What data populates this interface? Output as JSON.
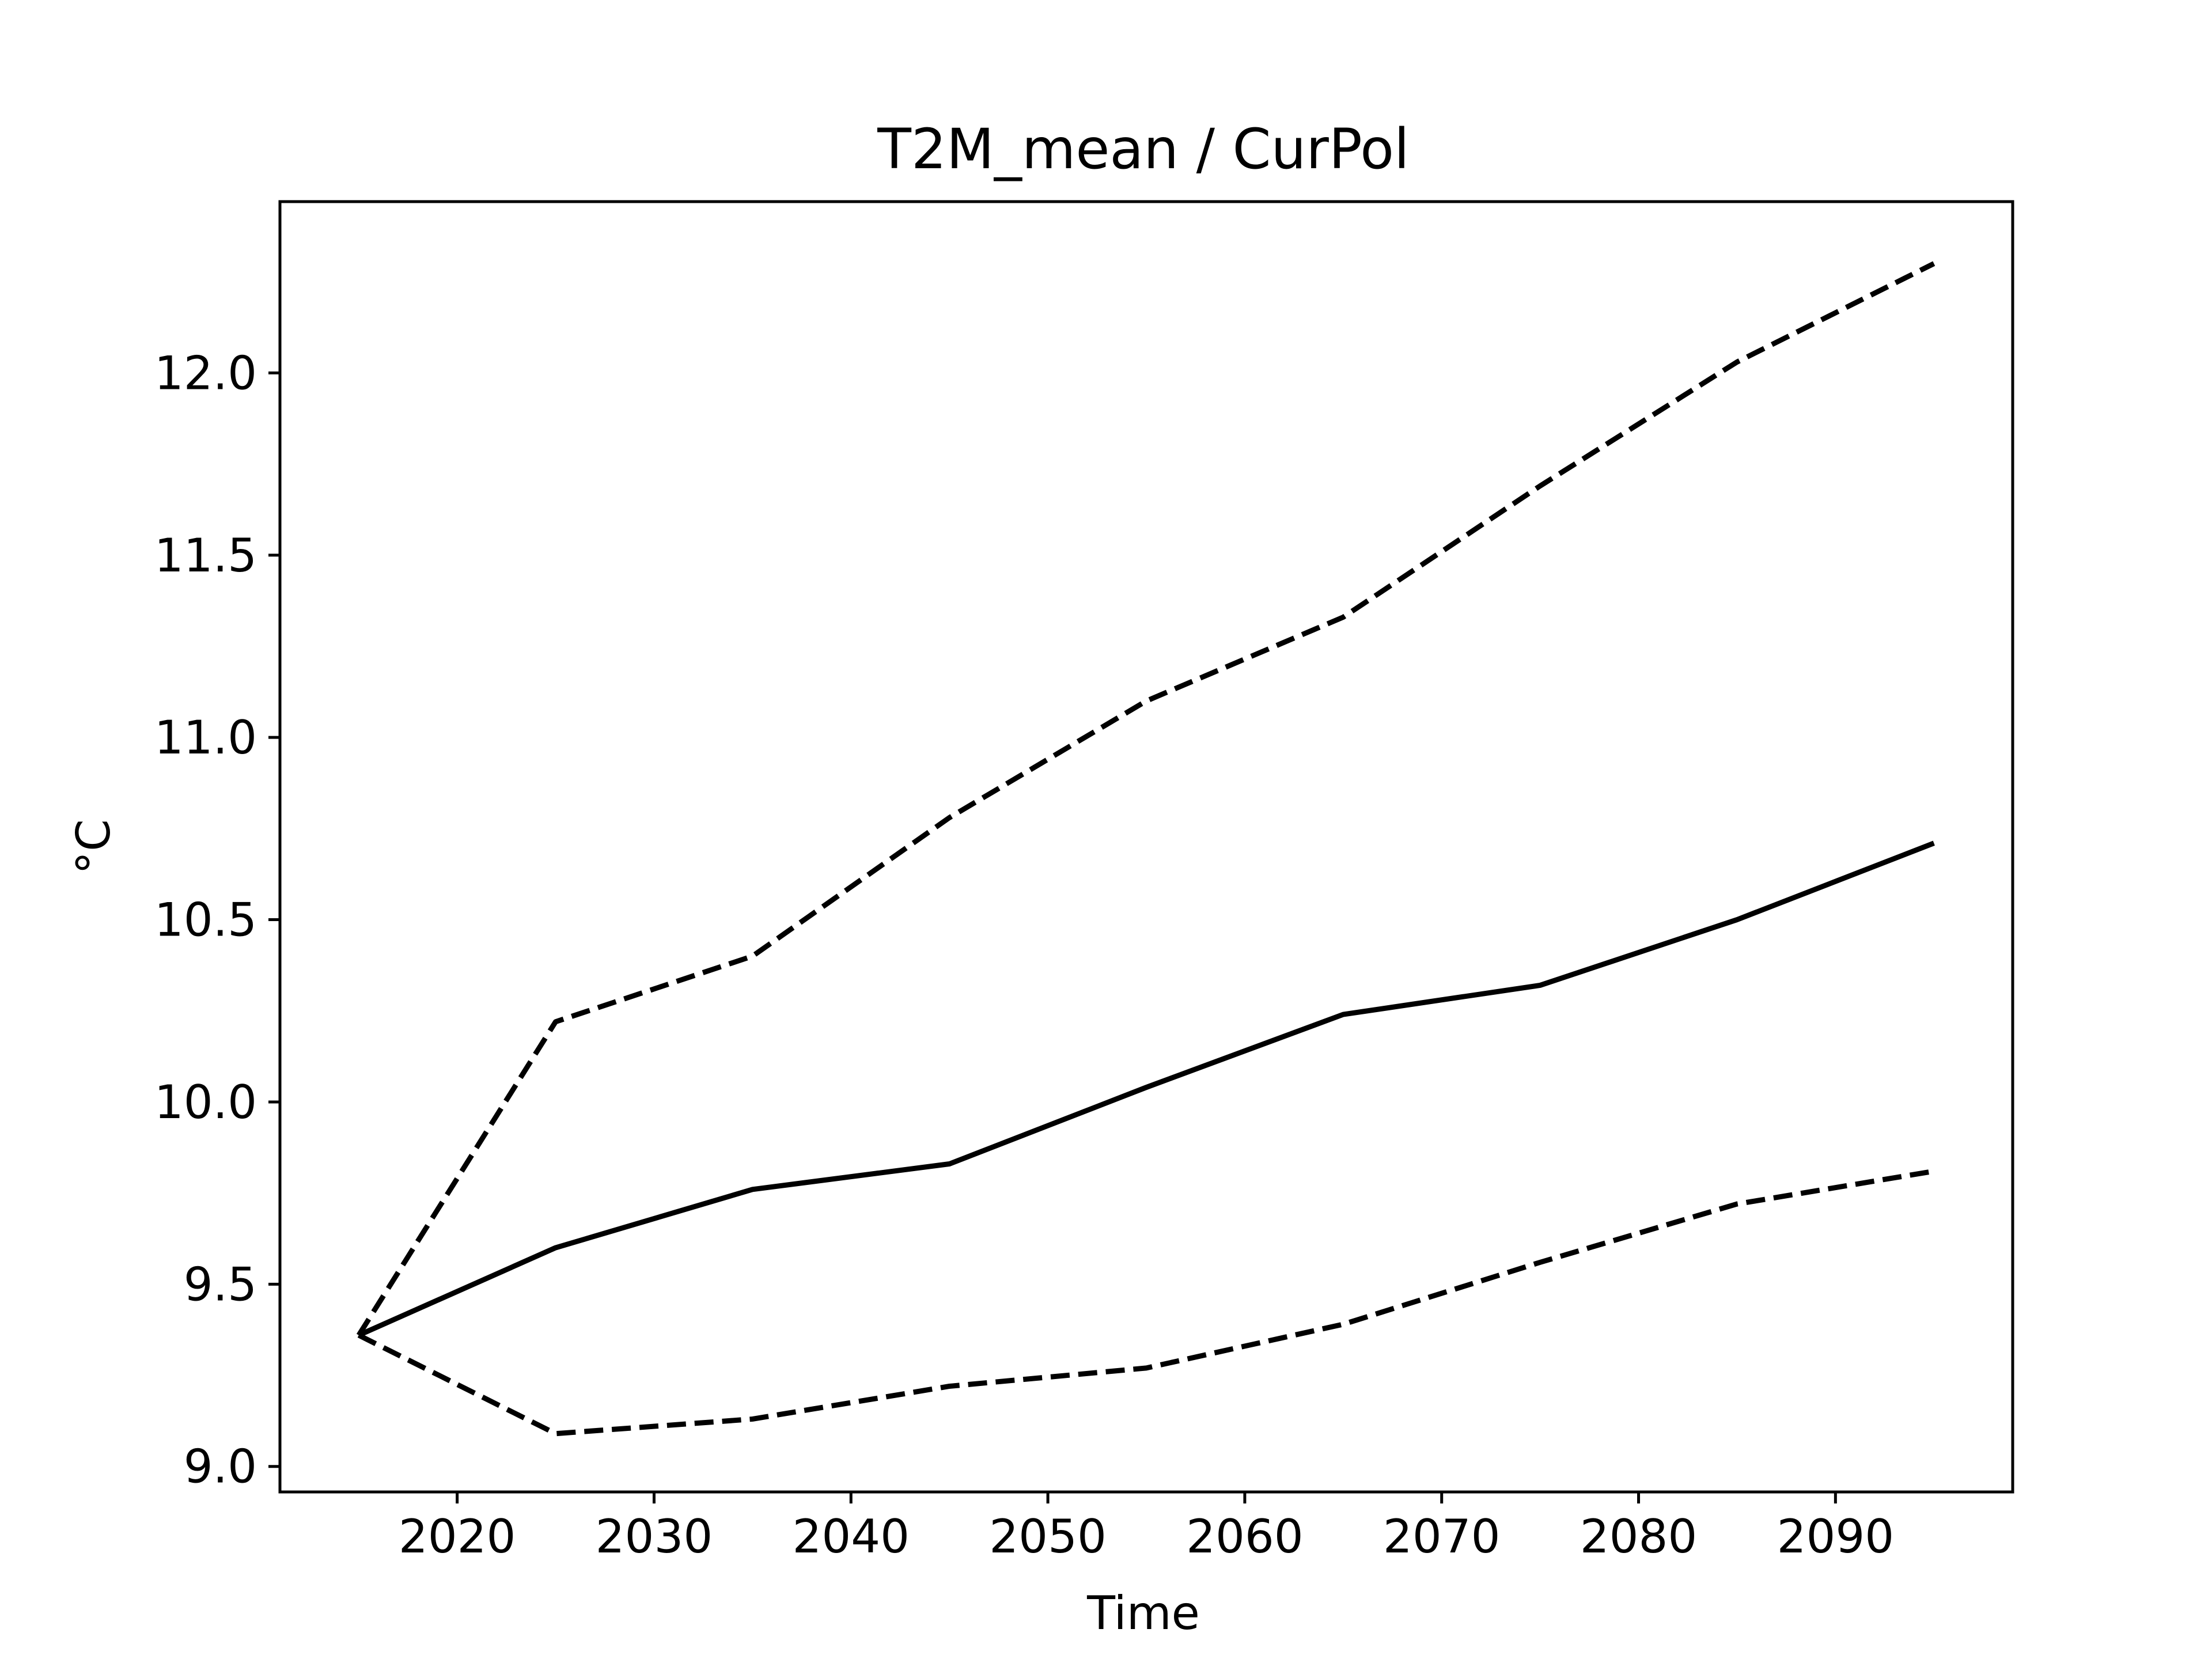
{
  "chart_data": {
    "type": "line",
    "title": "T2M_mean / CurPol",
    "xlabel": "Time",
    "ylabel": "°C",
    "xlim": [
      2011,
      2099
    ],
    "ylim": [
      8.93,
      12.47
    ],
    "xticks": [
      2020,
      2030,
      2040,
      2050,
      2060,
      2070,
      2080,
      2090
    ],
    "yticks": [
      9.0,
      9.5,
      10.0,
      10.5,
      11.0,
      11.5,
      12.0
    ],
    "ytick_labels": [
      "9.0",
      "9.5",
      "10.0",
      "10.5",
      "11.0",
      "11.5",
      "12.0"
    ],
    "grid": false,
    "x": [
      2015,
      2025,
      2035,
      2045,
      2055,
      2065,
      2075,
      2085,
      2095
    ],
    "series": [
      {
        "style": "solid",
        "color": "#000000",
        "values": [
          9.36,
          9.6,
          9.76,
          9.83,
          10.04,
          10.24,
          10.32,
          10.5,
          10.71
        ]
      },
      {
        "style": "dashed",
        "color": "#000000",
        "values": [
          9.36,
          10.22,
          10.4,
          10.78,
          11.1,
          11.33,
          11.69,
          12.03,
          12.3
        ]
      },
      {
        "style": "dashed",
        "color": "#000000",
        "values": [
          9.36,
          9.09,
          9.13,
          9.22,
          9.27,
          9.39,
          9.56,
          9.72,
          9.81
        ]
      }
    ]
  }
}
